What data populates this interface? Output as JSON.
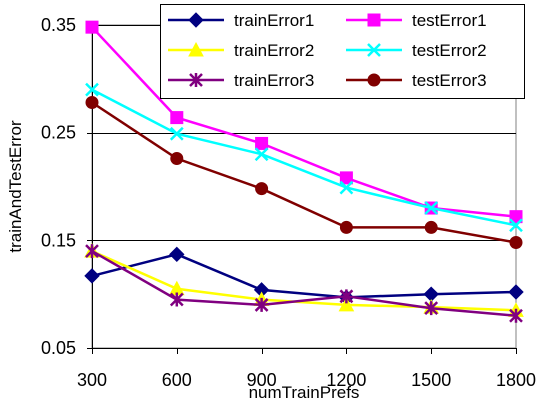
{
  "chart_data": {
    "type": "line",
    "title": "",
    "xlabel": "numTrainPrefs",
    "ylabel": "trainAndTestError",
    "x": [
      300,
      600,
      900,
      1200,
      1500,
      1800
    ],
    "x_tick_labels": [
      "300",
      "600",
      "900",
      "1200",
      "1500",
      "1800"
    ],
    "ylim": [
      0.05,
      0.35
    ],
    "y_ticks": [
      0.05,
      0.15,
      0.25,
      0.35
    ],
    "y_tick_labels": [
      "0.05",
      "0.15",
      "0.25",
      "0.35"
    ],
    "grid": "horizontal",
    "legend_position": "top-right",
    "series": [
      {
        "name": "trainError1",
        "color": "#000080",
        "marker": "diamond",
        "values": [
          0.117,
          0.137,
          0.104,
          0.097,
          0.1,
          0.102
        ]
      },
      {
        "name": "testError1",
        "color": "#ff00ff",
        "marker": "square",
        "values": [
          0.348,
          0.264,
          0.24,
          0.208,
          0.18,
          0.172
        ]
      },
      {
        "name": "trainError2",
        "color": "#ffff00",
        "marker": "triangle",
        "values": [
          0.14,
          0.105,
          0.095,
          0.09,
          0.088,
          0.085
        ]
      },
      {
        "name": "testError2",
        "color": "#00ffff",
        "marker": "x",
        "values": [
          0.29,
          0.249,
          0.23,
          0.199,
          0.18,
          0.164
        ]
      },
      {
        "name": "trainError3",
        "color": "#800080",
        "marker": "star",
        "values": [
          0.14,
          0.095,
          0.09,
          0.098,
          0.087,
          0.08
        ]
      },
      {
        "name": "testError3",
        "color": "#800000",
        "marker": "circle",
        "values": [
          0.278,
          0.226,
          0.198,
          0.162,
          0.162,
          0.148
        ]
      }
    ]
  }
}
